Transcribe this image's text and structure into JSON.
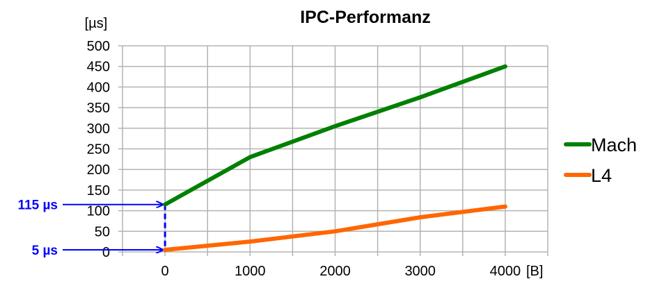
{
  "chart_data": {
    "type": "line",
    "title": "IPC-Performanz",
    "xlabel": "[B]",
    "ylabel": "[µs]",
    "x": [
      0,
      1000,
      2000,
      3000,
      4000
    ],
    "xlim": [
      -500,
      4500
    ],
    "ylim": [
      0,
      500
    ],
    "xticks": [
      0,
      1000,
      2000,
      3000,
      4000
    ],
    "yticks": [
      0,
      50,
      100,
      150,
      200,
      250,
      300,
      350,
      400,
      450,
      500
    ],
    "grid": true,
    "legend_position": "right",
    "series": [
      {
        "name": "Mach",
        "color": "#008000",
        "values": [
          115,
          230,
          305,
          375,
          450
        ]
      },
      {
        "name": "L4",
        "color": "#ff6600",
        "values": [
          5,
          25,
          50,
          84,
          110
        ]
      }
    ],
    "annotations": [
      {
        "text": "115 µs",
        "y": 115,
        "color": "#0000ff"
      },
      {
        "text": "5 µs",
        "y": 5,
        "color": "#0000ff"
      }
    ]
  }
}
